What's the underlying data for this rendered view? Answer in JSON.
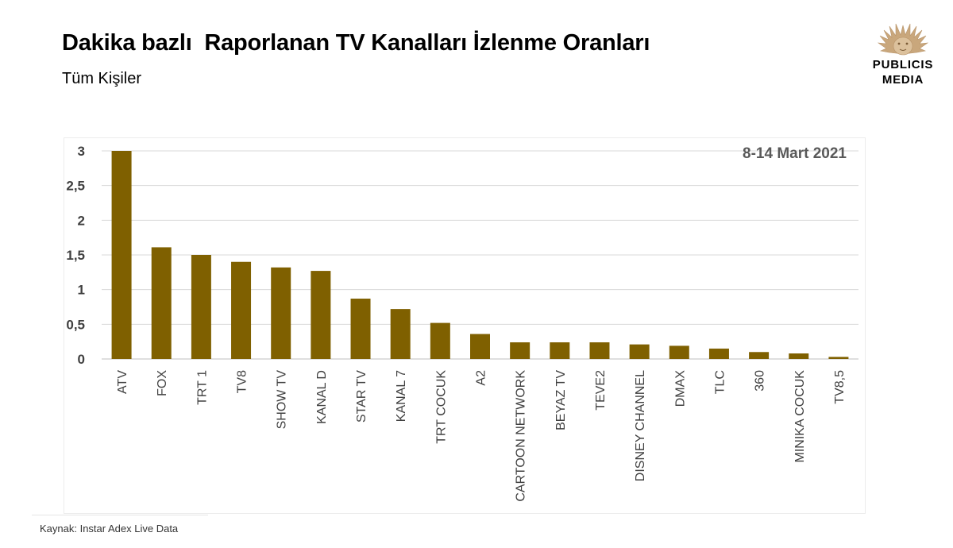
{
  "header": {
    "title": "Dakika bazlı  Raporlanan TV Kanalları İzlenme Oranları",
    "subtitle": "Tüm Kişiler"
  },
  "logo": {
    "line1": "PUBLICIS",
    "line2": "MEDIA",
    "icon": "lion-head-icon",
    "color": "#c9a77c"
  },
  "source": "Kaynak: Instar  Adex Live Data",
  "colors": {
    "bar": "#7f6000",
    "grid": "#d9d9d9",
    "text": "#404040",
    "date_label": "#595959"
  },
  "chart_data": {
    "type": "bar",
    "annotation": "8-14 Mart 2021",
    "categories": [
      "ATV",
      "FOX",
      "TRT 1",
      "TV8",
      "SHOW TV",
      "KANAL D",
      "STAR TV",
      "KANAL 7",
      "TRT COCUK",
      "A2",
      "CARTOON NETWORK",
      "BEYAZ TV",
      "TEVE2",
      "DISNEY CHANNEL",
      "DMAX",
      "TLC",
      "360",
      "MINIKA COCUK",
      "TV8,5"
    ],
    "values": [
      3.0,
      1.61,
      1.5,
      1.4,
      1.32,
      1.27,
      0.87,
      0.72,
      0.52,
      0.36,
      0.24,
      0.24,
      0.24,
      0.21,
      0.19,
      0.15,
      0.1,
      0.08,
      0.03
    ],
    "ylim": [
      0,
      3
    ],
    "yticks": [
      0,
      0.5,
      1,
      1.5,
      2,
      2.5,
      3
    ],
    "ytick_labels": [
      "0",
      "0,5",
      "1",
      "1,5",
      "2",
      "2,5",
      "3"
    ],
    "grid": true,
    "legend": "none"
  }
}
